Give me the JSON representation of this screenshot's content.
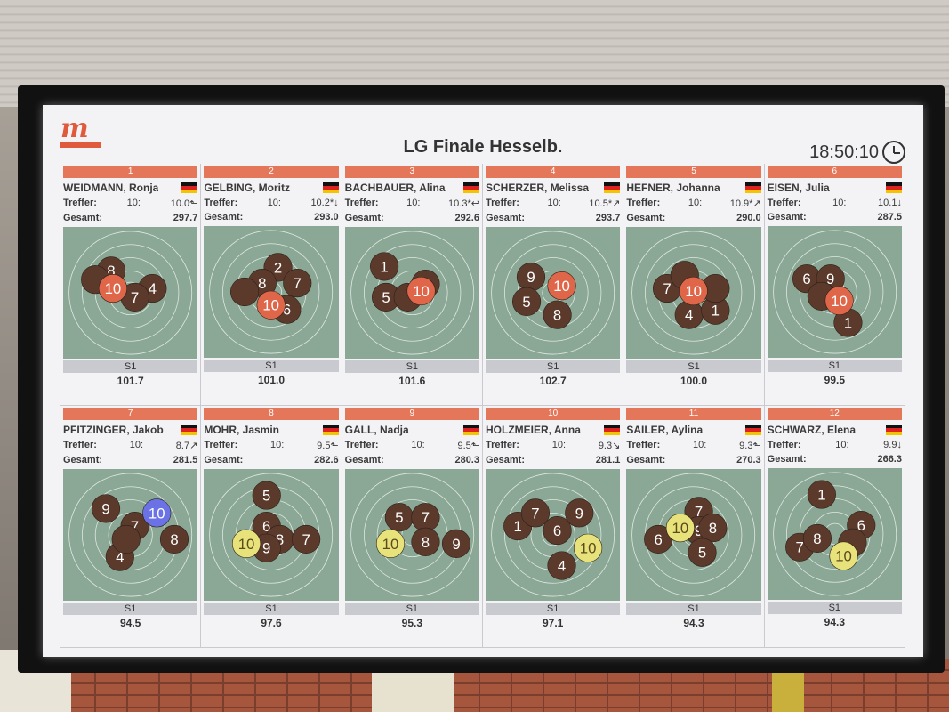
{
  "screen": {
    "title": "LG Finale Hesselb.",
    "clock": "18:50:10",
    "logo": {
      "glyph": "m"
    }
  },
  "labels": {
    "treffer": "Treffer:",
    "gesamt": "Gesamt:",
    "shot_label": "10:",
    "series": "S1"
  },
  "colors": {
    "rank_bar": "#e4765a",
    "target": "#8aa895",
    "shot_brown": "#5b3a2c",
    "shot_last": "#e0664a",
    "shot_gold": "#e8e27a",
    "shot_blue": "#6a72e6"
  },
  "shooters": [
    {
      "rank": "1",
      "name": "WEIDMANN, Ronja",
      "flag": "germany-flag-icon",
      "treffer": "10.0",
      "trend": "⬑",
      "gesamt": "297.7",
      "series": "S1",
      "score": "101.7",
      "highlight": "10",
      "shots": [
        {
          "x": -22,
          "y": -25,
          "v": "8"
        },
        {
          "x": -40,
          "y": -15,
          "v": ""
        },
        {
          "x": 25,
          "y": -5,
          "v": "4"
        },
        {
          "x": 5,
          "y": 5,
          "v": "7"
        },
        {
          "x": -20,
          "y": -5,
          "v": "10",
          "last": true
        }
      ]
    },
    {
      "rank": "2",
      "name": "GELBING, Moritz",
      "flag": "germany-flag-icon",
      "treffer": "10.2*",
      "trend": "↓",
      "gesamt": "293.0",
      "series": "S1",
      "score": "101.0",
      "highlight": "10",
      "shots": [
        {
          "x": 8,
          "y": -28,
          "v": "2"
        },
        {
          "x": 30,
          "y": -10,
          "v": "7"
        },
        {
          "x": -10,
          "y": -10,
          "v": "8"
        },
        {
          "x": -30,
          "y": 0,
          "v": ""
        },
        {
          "x": 18,
          "y": 20,
          "v": "6"
        },
        {
          "x": 0,
          "y": 15,
          "v": "10",
          "last": true
        }
      ]
    },
    {
      "rank": "3",
      "name": "BACHBAUER, Alina",
      "flag": "germany-flag-icon",
      "treffer": "10.3*",
      "trend": "↩",
      "gesamt": "292.6",
      "series": "S1",
      "score": "101.6",
      "highlight": "10",
      "shots": [
        {
          "x": -32,
          "y": -30,
          "v": "1"
        },
        {
          "x": -30,
          "y": 5,
          "v": "5"
        },
        {
          "x": -5,
          "y": 5,
          "v": ""
        },
        {
          "x": 15,
          "y": -10,
          "v": ""
        },
        {
          "x": 10,
          "y": -2,
          "v": "10",
          "last": true
        }
      ]
    },
    {
      "rank": "4",
      "name": "SCHERZER, Melissa",
      "flag": "germany-flag-icon",
      "treffer": "10.5*",
      "trend": "↗",
      "gesamt": "293.7",
      "series": "S1",
      "score": "102.7",
      "highlight": "10",
      "shots": [
        {
          "x": -25,
          "y": -18,
          "v": "9"
        },
        {
          "x": -30,
          "y": 10,
          "v": "5"
        },
        {
          "x": 5,
          "y": 25,
          "v": "8"
        },
        {
          "x": 10,
          "y": -8,
          "v": "10",
          "last": true
        }
      ]
    },
    {
      "rank": "5",
      "name": "HEFNER, Johanna",
      "flag": "germany-flag-icon",
      "treffer": "10.9*",
      "trend": "↗",
      "gesamt": "290.0",
      "series": "S1",
      "score": "100.0",
      "highlight": "10",
      "shots": [
        {
          "x": -30,
          "y": -5,
          "v": "7"
        },
        {
          "x": -5,
          "y": 25,
          "v": "4"
        },
        {
          "x": 25,
          "y": 20,
          "v": "1"
        },
        {
          "x": 25,
          "y": -5,
          "v": ""
        },
        {
          "x": -10,
          "y": -20,
          "v": ""
        },
        {
          "x": 0,
          "y": -2,
          "v": "10",
          "last": true
        }
      ]
    },
    {
      "rank": "6",
      "name": "EISEN, Julia",
      "flag": "germany-flag-icon",
      "treffer": "10.1",
      "trend": "↓",
      "gesamt": "287.5",
      "series": "S1",
      "score": "99.5",
      "highlight": "10",
      "shots": [
        {
          "x": -32,
          "y": -15,
          "v": "6"
        },
        {
          "x": -5,
          "y": -15,
          "v": "9"
        },
        {
          "x": 15,
          "y": 35,
          "v": "1"
        },
        {
          "x": -15,
          "y": 5,
          "v": ""
        },
        {
          "x": 5,
          "y": 10,
          "v": "10",
          "last": true
        }
      ]
    },
    {
      "rank": "7",
      "name": "PFITZINGER, Jakob",
      "flag": "germany-flag-icon",
      "treffer": "8.7",
      "trend": "↗",
      "gesamt": "281.5",
      "series": "S1",
      "score": "94.5",
      "highlight": "10",
      "shots": [
        {
          "x": -28,
          "y": -30,
          "v": "9"
        },
        {
          "x": -12,
          "y": 25,
          "v": "4"
        },
        {
          "x": 50,
          "y": 5,
          "v": "8"
        },
        {
          "x": 5,
          "y": -10,
          "v": "7"
        },
        {
          "x": -5,
          "y": 5,
          "v": ""
        },
        {
          "x": 30,
          "y": -25,
          "v": "10",
          "blue": true
        }
      ]
    },
    {
      "rank": "8",
      "name": "MOHR, Jasmin",
      "flag": "germany-flag-icon",
      "treffer": "9.5",
      "trend": "⬑",
      "gesamt": "282.6",
      "series": "S1",
      "score": "97.6",
      "highlight": "10",
      "shots": [
        {
          "x": -5,
          "y": -45,
          "v": "5"
        },
        {
          "x": -5,
          "y": -10,
          "v": "6"
        },
        {
          "x": 10,
          "y": 5,
          "v": "8"
        },
        {
          "x": 40,
          "y": 5,
          "v": "7"
        },
        {
          "x": -5,
          "y": 15,
          "v": "9"
        },
        {
          "x": -28,
          "y": 10,
          "v": "10",
          "gold": true
        }
      ]
    },
    {
      "rank": "9",
      "name": "GALL, Nadja",
      "flag": "germany-flag-icon",
      "treffer": "9.5",
      "trend": "⬑",
      "gesamt": "280.3",
      "series": "S1",
      "score": "95.3",
      "highlight": "10",
      "shots": [
        {
          "x": -15,
          "y": -20,
          "v": "5"
        },
        {
          "x": 15,
          "y": -20,
          "v": "7"
        },
        {
          "x": 15,
          "y": 8,
          "v": "8"
        },
        {
          "x": 50,
          "y": 10,
          "v": "9"
        },
        {
          "x": -25,
          "y": 10,
          "v": "10",
          "gold": true
        }
      ]
    },
    {
      "rank": "10",
      "name": "HOLZMEIER, Anna",
      "flag": "germany-flag-icon",
      "treffer": "9.3",
      "trend": "↘",
      "gesamt": "281.1",
      "series": "S1",
      "score": "97.1",
      "highlight": "10",
      "shots": [
        {
          "x": -40,
          "y": -10,
          "v": "1"
        },
        {
          "x": -20,
          "y": -25,
          "v": "7"
        },
        {
          "x": 30,
          "y": -25,
          "v": "9"
        },
        {
          "x": 5,
          "y": -5,
          "v": "6"
        },
        {
          "x": 10,
          "y": 35,
          "v": "4"
        },
        {
          "x": 40,
          "y": 15,
          "v": "10",
          "gold": true
        }
      ]
    },
    {
      "rank": "11",
      "name": "SAILER, Aylina",
      "flag": "germany-flag-icon",
      "treffer": "9.3",
      "trend": "⬑",
      "gesamt": "270.3",
      "series": "S1",
      "score": "94.3",
      "highlight": "10",
      "shots": [
        {
          "x": -40,
          "y": 5,
          "v": "6"
        },
        {
          "x": 6,
          "y": -27,
          "v": "7"
        },
        {
          "x": 6,
          "y": -5,
          "v": "9"
        },
        {
          "x": 22,
          "y": -8,
          "v": "8"
        },
        {
          "x": 10,
          "y": 20,
          "v": "5"
        },
        {
          "x": -15,
          "y": -8,
          "v": "10",
          "gold": true
        }
      ]
    },
    {
      "rank": "12",
      "name": "SCHWARZ, Elena",
      "flag": "germany-flag-icon",
      "treffer": "9.9",
      "trend": "↓",
      "gesamt": "266.3",
      "series": "S1",
      "score": "94.3",
      "highlight": "10",
      "shots": [
        {
          "x": -15,
          "y": -45,
          "v": "1"
        },
        {
          "x": 30,
          "y": -10,
          "v": "6"
        },
        {
          "x": -40,
          "y": 15,
          "v": "7"
        },
        {
          "x": -20,
          "y": 5,
          "v": "8"
        },
        {
          "x": 20,
          "y": 10,
          "v": ""
        },
        {
          "x": 10,
          "y": 25,
          "v": "10",
          "gold": true
        }
      ]
    }
  ]
}
